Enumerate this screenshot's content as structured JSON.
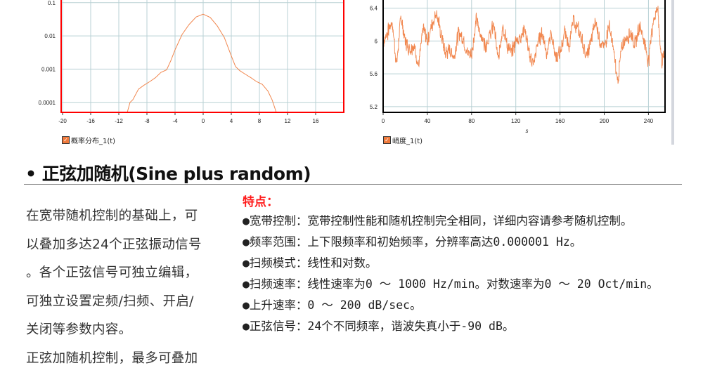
{
  "charts_meta": {
    "colors": {
      "series": "#f07a3c",
      "grid": "#b8d0d4",
      "left_frame": "#ff0000",
      "right_frame": "#000000"
    }
  },
  "chart_data": [
    {
      "type": "line",
      "yscale": "log",
      "xlim": [
        -20.2,
        20
      ],
      "ylim": [
        5e-05,
        0.12
      ],
      "xticks": [
        "-20",
        "-16",
        "-12",
        "-8",
        "-4",
        "0",
        "4",
        "8",
        "12",
        "16"
      ],
      "yticks": [
        "0.1",
        "0.01",
        "0.001",
        "0.0001"
      ],
      "grid": true,
      "legend": "bottom-left",
      "series": [
        {
          "name": "概率分布_1(t)",
          "x": [
            -10.8,
            -10.4,
            -10,
            -9.2,
            -8.4,
            -7.6,
            -6.8,
            -6,
            -5.2,
            -4.6,
            -4,
            -3,
            -2,
            -1,
            0,
            1,
            2,
            3,
            4,
            4.6,
            5.2,
            6,
            6.8,
            7.6,
            8.4,
            9.2,
            9.8,
            10.4
          ],
          "y": [
            5e-05,
            0.0001,
            0.00012,
            0.00025,
            0.00033,
            0.00042,
            0.00055,
            0.0008,
            0.00095,
            0.0018,
            0.0038,
            0.011,
            0.022,
            0.037,
            0.045,
            0.036,
            0.02,
            0.009,
            0.0025,
            0.0012,
            0.0009,
            0.0007,
            0.00055,
            0.00042,
            0.00035,
            0.00022,
            0.00012,
            5e-05
          ]
        }
      ]
    },
    {
      "type": "line",
      "xlim": [
        0,
        255
      ],
      "ylim": [
        5.13,
        6.5
      ],
      "xticks": [
        "0",
        "40",
        "80",
        "120",
        "160",
        "200",
        "240"
      ],
      "yticks": [
        "6.4",
        "6",
        "5.6",
        "5.2"
      ],
      "xlabel": "s",
      "grid": true,
      "legend": "bottom-left",
      "series": [
        {
          "name": "峭度_1(t)",
          "x": [
            0,
            4,
            8,
            12,
            16,
            20,
            24,
            28,
            32,
            36,
            40,
            44,
            48,
            52,
            56,
            60,
            64,
            68,
            72,
            76,
            80,
            84,
            88,
            92,
            96,
            100,
            104,
            108,
            112,
            116,
            120,
            124,
            128,
            132,
            136,
            140,
            144,
            148,
            152,
            156,
            160,
            164,
            168,
            172,
            176,
            180,
            184,
            188,
            192,
            196,
            200,
            204,
            208,
            212,
            216,
            220,
            224,
            228,
            232,
            236,
            240,
            244,
            248,
            252,
            255
          ],
          "y": [
            6.0,
            6.1,
            6.25,
            5.7,
            6.3,
            6.0,
            5.9,
            5.95,
            5.7,
            6.15,
            6.0,
            6.2,
            6.35,
            6.1,
            5.85,
            5.9,
            5.8,
            6.1,
            6.05,
            5.85,
            5.85,
            6.25,
            6.1,
            5.95,
            6.05,
            6.2,
            5.75,
            6.2,
            5.95,
            5.85,
            6.0,
            6.05,
            6.15,
            5.85,
            5.7,
            6.0,
            6.1,
            5.85,
            6.1,
            5.8,
            5.85,
            6.1,
            5.95,
            6.25,
            6.15,
            6.0,
            5.8,
            6.0,
            6.25,
            6.0,
            5.9,
            6.2,
            5.9,
            5.5,
            5.95,
            6.05,
            6.1,
            5.95,
            6.2,
            6.0,
            5.75,
            6.25,
            6.4,
            5.75,
            5.85
          ]
        }
      ]
    }
  ],
  "section": {
    "bullet": "•",
    "heading": "正弦加随机(Sine plus random)"
  },
  "intro": {
    "lines": [
      "在宽带随机控制的基础上，可",
      "以叠加多达24个正弦振动信号",
      "。各个正弦信号可独立编辑，",
      "可独立设置定频/扫频、开启/",
      "关闭等参数内容。",
      "正弦加随机控制，最多可叠加"
    ]
  },
  "features": {
    "title": "特点：",
    "items": [
      "●宽带控制：宽带控制性能和随机控制完全相同，详细内容请参考随机控制。",
      "●频率范围：上下限频率和初始频率，分辨率高达0.000001 Hz。",
      "●扫频模式：线性和对数。",
      "●扫频速率：线性速率为0 ～ 1000 Hz/min。对数速率为0 ～ 20 Oct/min。",
      "●上升速率：0 ～ 200 dB/sec。",
      "●正弦信号：24个不同频率，谐波失真小于-90 dB。"
    ]
  }
}
